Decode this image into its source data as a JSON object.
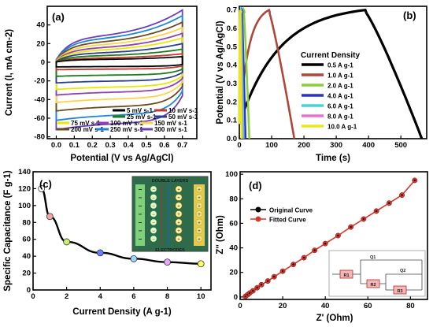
{
  "colors": {
    "s5": "#000000",
    "s10": "#c0392b",
    "s25": "#1a7c1a",
    "s50": "#2b3d8f",
    "s75": "#e8e800",
    "s100": "#8e44ad",
    "s150": "#ffd24a",
    "s200": "#6b4b1b",
    "s250": "#1c86d9",
    "s300": "#6a3fbf",
    "d05": "#000000",
    "d10": "#b0463a",
    "d20": "#8ccf3e",
    "d40": "#2a33c4",
    "d60": "#47d4d4",
    "d80": "#ef6fd0",
    "d100": "#e8e81a",
    "cap_line": "#000000",
    "nyq_orig": "#000000",
    "nyq_fit": "#d9352c"
  },
  "chart_data": [
    {
      "id": "a",
      "panel_label": "(a)",
      "type": "line",
      "xlabel": "Potential (V vs Ag/AgCl)",
      "ylabel": "Current (I, mA cm-2)",
      "xlim": [
        -0.05,
        0.78
      ],
      "ylim": [
        -82,
        60
      ],
      "xticks": [
        "0.0",
        "0.1",
        "0.2",
        "0.3",
        "0.4",
        "0.5",
        "0.6",
        "0.7"
      ],
      "xtick_values": [
        0.0,
        0.1,
        0.2,
        0.3,
        0.4,
        0.5,
        0.6,
        0.7
      ],
      "yticks": [
        "-80",
        "-60",
        "-40",
        "-20",
        "0",
        "20",
        "40"
      ],
      "ytick_values": [
        -80,
        -60,
        -40,
        -20,
        0,
        20,
        40
      ],
      "potential_window": [
        0.0,
        0.7
      ],
      "series": [
        {
          "name": "5 mV s-1",
          "rate": 5,
          "upper_end": 6,
          "lower_start": -5
        },
        {
          "name": "10 mV s-1",
          "rate": 10,
          "upper_end": 9,
          "lower_start": -8
        },
        {
          "name": "25 mV s-1",
          "rate": 25,
          "upper_end": 14,
          "lower_start": -15
        },
        {
          "name": "50 mV s-1",
          "rate": 50,
          "upper_end": 20,
          "lower_start": -22
        },
        {
          "name": "75 mV s-1",
          "rate": 75,
          "upper_end": 26,
          "lower_start": -29
        },
        {
          "name": "100 mV s-1",
          "rate": 100,
          "upper_end": 31,
          "lower_start": -35
        },
        {
          "name": "150 mV s-1",
          "rate": 150,
          "upper_end": 37,
          "lower_start": -43
        },
        {
          "name": "200 mV s-1",
          "rate": 200,
          "upper_end": 43,
          "lower_start": -52
        },
        {
          "name": "250 mV s-1",
          "rate": 250,
          "upper_end": 50,
          "lower_start": -62
        },
        {
          "name": "300 mV s-1",
          "rate": 300,
          "upper_end": 56,
          "lower_start": -72
        }
      ]
    },
    {
      "id": "b",
      "panel_label": "(b)",
      "type": "line",
      "xlabel": "Time (s)",
      "ylabel": "Potential (V vs Ag/AgCl)",
      "xlim": [
        0,
        580
      ],
      "ylim": [
        0,
        0.72
      ],
      "xticks": [
        "0",
        "100",
        "200",
        "300",
        "400",
        "500"
      ],
      "xtick_values": [
        0,
        100,
        200,
        300,
        400,
        500
      ],
      "yticks": [
        "0.0",
        "0.1",
        "0.2",
        "0.3",
        "0.4",
        "0.5",
        "0.6",
        "0.7"
      ],
      "ytick_values": [
        0.0,
        0.1,
        0.2,
        0.3,
        0.4,
        0.5,
        0.6,
        0.7
      ],
      "legend_title": "Current Density",
      "series": [
        {
          "name": "0.5 A g-1",
          "charge_time": 390,
          "total_time": 565
        },
        {
          "name": "1.0 A g-1",
          "charge_time": 92,
          "total_time": 170
        },
        {
          "name": "2.0 A g-1",
          "charge_time": 14,
          "total_time": 31
        },
        {
          "name": "4.0 A g-1",
          "charge_time": 8,
          "total_time": 19
        },
        {
          "name": "6.0 A g-1",
          "charge_time": 5,
          "total_time": 13
        },
        {
          "name": "8.0 A g-1",
          "charge_time": 3,
          "total_time": 9
        },
        {
          "name": "10.0 A g-1",
          "charge_time": 2,
          "total_time": 7
        }
      ]
    },
    {
      "id": "c",
      "panel_label": "(c)",
      "type": "line",
      "xlabel": "Current Density (A g-1)",
      "ylabel": "Specific Capacitance (F g-1)",
      "xlim": [
        0,
        10.6
      ],
      "ylim": [
        0,
        140
      ],
      "xticks": [
        "0",
        "2",
        "4",
        "6",
        "8",
        "10"
      ],
      "xtick_values": [
        0,
        2,
        4,
        6,
        8,
        10
      ],
      "yticks": [
        "0",
        "20",
        "40",
        "60",
        "80",
        "100",
        "120",
        "140"
      ],
      "ytick_values": [
        0,
        20,
        40,
        60,
        80,
        100,
        120,
        140
      ],
      "x": [
        0.5,
        1,
        2,
        4,
        6,
        8,
        10
      ],
      "y": [
        120,
        87,
        57,
        44,
        37,
        33,
        31
      ],
      "inset": {
        "top_label": "DOUBLE LAYERS",
        "bottom_label": "ELECTRODES"
      }
    },
    {
      "id": "d",
      "panel_label": "(d)",
      "type": "scatter",
      "xlabel": "Z' (Ohm)",
      "ylabel": "Z'' (Ohm)",
      "xlim": [
        0,
        88
      ],
      "ylim": [
        -2,
        102
      ],
      "xticks": [
        "0",
        "20",
        "40",
        "60",
        "80"
      ],
      "xtick_values": [
        0,
        20,
        40,
        60,
        80
      ],
      "yticks": [
        "0",
        "20",
        "40",
        "60",
        "80",
        "100"
      ],
      "ytick_values": [
        0,
        20,
        40,
        60,
        80,
        100
      ],
      "series": [
        {
          "name": "Original Curve"
        },
        {
          "name": "Fitted Curve"
        }
      ],
      "x": [
        2.5,
        3.5,
        4.5,
        6,
        8,
        10,
        13,
        16,
        20,
        25,
        30,
        35,
        40,
        46,
        52,
        58,
        64,
        70,
        76,
        82
      ],
      "y": [
        0.5,
        1.8,
        3.2,
        5,
        7.5,
        10,
        13,
        16.5,
        21,
        26.5,
        32,
        38,
        43.5,
        50,
        57,
        63.5,
        70,
        76.5,
        83,
        95
      ],
      "circuit": {
        "r1": "R1",
        "r2": "R2",
        "r3": "R3",
        "q1": "Q1",
        "q2": "Q2"
      }
    }
  ]
}
